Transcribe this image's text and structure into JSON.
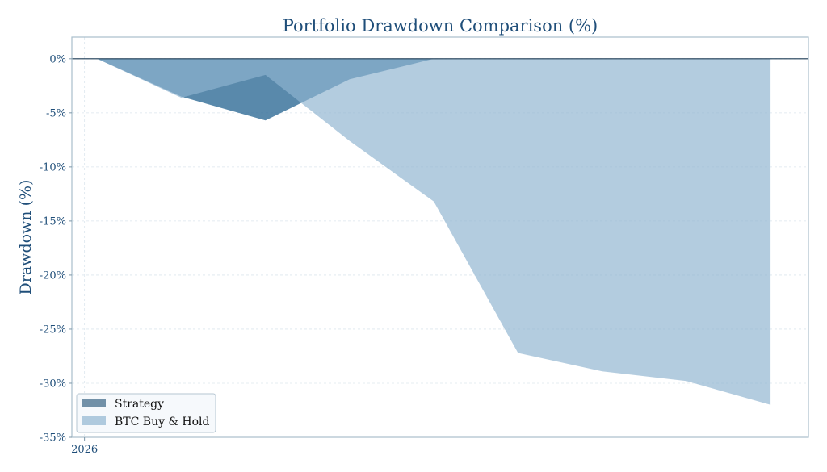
{
  "chart_data": {
    "type": "area",
    "title": "Portfolio Drawdown Comparison (%)",
    "xlabel": "",
    "ylabel": "Drawdown (%)",
    "ylim": [
      -35,
      2
    ],
    "yticks": [
      0,
      -5,
      -10,
      -15,
      -20,
      -25,
      -30,
      -35
    ],
    "ytick_labels": [
      "0%",
      "-5%",
      "-10%",
      "-15%",
      "-20%",
      "-25%",
      "-30%",
      "-35%"
    ],
    "xlim": [
      -0.15,
      8.6
    ],
    "xticks": [
      0
    ],
    "xtick_labels": [
      "2026"
    ],
    "grid": true,
    "legend_position": "lower-left",
    "series": [
      {
        "name": "Strategy",
        "color": "#2f6b96",
        "opacity": 0.8,
        "x": [
          0.15,
          1.15,
          2.15,
          3.15,
          4.15,
          5.15,
          6.15,
          7.15,
          8.15
        ],
        "values": [
          0,
          -3.5,
          -5.7,
          -1.9,
          0,
          0,
          0,
          0,
          0
        ]
      },
      {
        "name": "BTC Buy & Hold",
        "color": "#8fb4d0",
        "opacity": 0.68,
        "x": [
          0.15,
          1.15,
          2.15,
          3.15,
          4.15,
          5.15,
          6.15,
          7.15,
          8.15
        ],
        "values": [
          0,
          -3.6,
          -1.5,
          -7.6,
          -13.2,
          -27.2,
          -28.9,
          -29.8,
          -32.0
        ]
      }
    ],
    "legend_swatches": [
      "#7291a8",
      "#afcade"
    ]
  }
}
